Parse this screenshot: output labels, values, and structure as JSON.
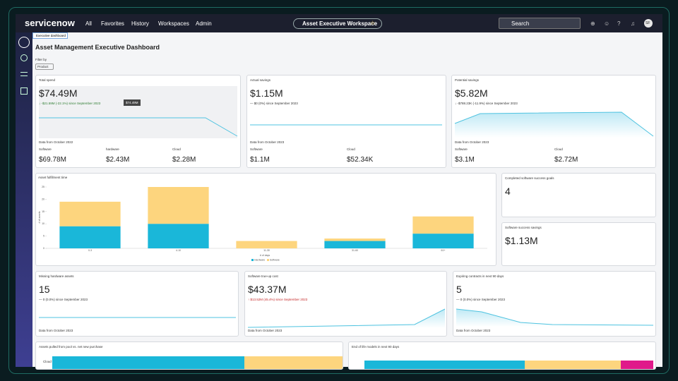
{
  "nav": {
    "logo": "servicenow",
    "items": [
      "All",
      "Favorites",
      "History",
      "Workspaces",
      "Admin"
    ],
    "workspace": "Asset Executive Workspace",
    "search": "Search",
    "avatar": "SF"
  },
  "tab": "Executive dashboard",
  "title": "Asset Management Executive Dashboard",
  "filter": {
    "label": "Filter by",
    "button": "Product"
  },
  "cards": {
    "total_spend": {
      "title": "Total spend",
      "value": "$74.49M",
      "change": "-$21.59M (-22.1%) since September 2023",
      "tooltip": "$74.49M",
      "footer": "Data from October 2022",
      "breakdown": [
        {
          "label": "Software",
          "value": "$69.78M"
        },
        {
          "label": "hardware",
          "value": "$2.43M"
        },
        {
          "label": "Cloud",
          "value": "$2.28M"
        }
      ]
    },
    "actual_savings": {
      "title": "Actual savings",
      "value": "$1.15M",
      "change": "$0 (0%) since September 2023",
      "footer": "Data from October 2023",
      "breakdown": [
        {
          "label": "Software",
          "value": "$1.1M"
        },
        {
          "label": "Cloud",
          "value": "$52.34K"
        }
      ]
    },
    "potential_savings": {
      "title": "Potential savings",
      "value": "$5.82M",
      "change": "-$788.23K (-11.9%) since September 2023",
      "footer": "Data from October 2023",
      "breakdown": [
        {
          "label": "Software",
          "value": "$3.1M"
        },
        {
          "label": "Cloud",
          "value": "$2.72M"
        }
      ]
    },
    "completed_goals": {
      "title": "Completed software success goals",
      "value": "4"
    },
    "success_savings": {
      "title": "Software success savings",
      "value": "$1.13M"
    },
    "missing_hardware": {
      "title": "Missing hardware assets",
      "value": "15",
      "change": "0 (0.0%) since September 2023",
      "footer": "Data from October 2023"
    },
    "true_up": {
      "title": "Software true-up cost",
      "value": "$43.37M",
      "change": "$13.52M (45.4%) since September 2023",
      "footer": "Data from October 2023"
    },
    "expiring": {
      "title": "Expiring contracts in next 90 days",
      "value": "5",
      "change": "0 (0.0%) since September 2023",
      "footer": "Data from October 2023"
    },
    "pool": {
      "title": "Assets pulled from pool vs. net new purchase",
      "axis_label": "Cloud"
    },
    "end_of_life": {
      "title": "End of life models in next 90 days"
    }
  },
  "chart_data": {
    "type": "bar",
    "stacked": true,
    "title": "Asset fulfillment time",
    "x_label": "# of days",
    "y_label": "# of assets",
    "categories": [
      "0-3",
      "4-10",
      "11-30",
      "31-60",
      "61+"
    ],
    "series": [
      {
        "name": "Hardware",
        "color": "#1ab7d9",
        "values": [
          9,
          10,
          0,
          3,
          6
        ]
      },
      {
        "name": "Software",
        "color": "#fdd57e",
        "values": [
          10,
          15,
          3,
          1,
          7
        ]
      }
    ],
    "ylim": [
      0,
      25
    ],
    "yticks": [
      0,
      5,
      10,
      15,
      20,
      25
    ]
  }
}
